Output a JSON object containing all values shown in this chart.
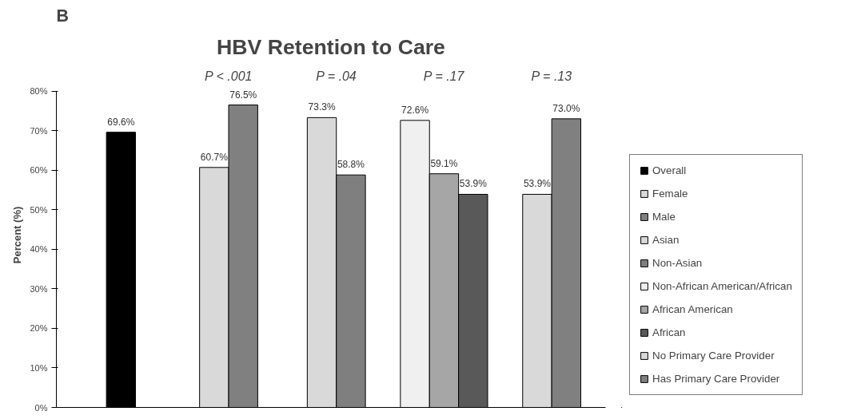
{
  "chart_data": {
    "type": "bar",
    "title": "HBV Retention to Care",
    "ylabel": "Percent (%)",
    "categories": [
      null,
      null,
      null,
      null,
      null
    ],
    "series": [
      {
        "name": "Overall",
        "color": "#000000",
        "values": [
          69.6,
          null,
          null,
          null,
          null
        ],
        "value_labels": [
          "69.6%",
          null,
          null,
          null,
          null
        ]
      },
      {
        "name": "Female",
        "color": "#d9d9d9",
        "values": [
          null,
          60.7,
          null,
          null,
          null
        ],
        "value_labels": [
          null,
          "60.7%",
          null,
          null,
          null
        ]
      },
      {
        "name": "Male",
        "color": "#808080",
        "values": [
          null,
          76.5,
          null,
          null,
          null
        ],
        "value_labels": [
          null,
          "76.5%",
          null,
          null,
          null
        ]
      },
      {
        "name": "Asian",
        "color": "#d9d9d9",
        "values": [
          null,
          null,
          73.3,
          null,
          null
        ],
        "value_labels": [
          null,
          null,
          "73.3%",
          null,
          null
        ]
      },
      {
        "name": "Non-Asian",
        "color": "#7f7f7f",
        "values": [
          null,
          null,
          58.8,
          null,
          null
        ],
        "value_labels": [
          null,
          null,
          "58.8%",
          null,
          null
        ]
      },
      {
        "name": "Non-African American/African",
        "color": "#f0f0f0",
        "values": [
          null,
          null,
          null,
          72.6,
          null
        ],
        "value_labels": [
          null,
          null,
          null,
          "72.6%",
          null
        ]
      },
      {
        "name": "African American",
        "color": "#a6a6a6",
        "values": [
          null,
          null,
          null,
          59.1,
          null
        ],
        "value_labels": [
          null,
          null,
          null,
          "59.1%",
          null
        ]
      },
      {
        "name": "African",
        "color": "#595959",
        "values": [
          null,
          null,
          null,
          53.9,
          null
        ],
        "value_labels": [
          null,
          null,
          null,
          "53.9%",
          null
        ]
      },
      {
        "name": "No Primary Care Provider",
        "color": "#d9d9d9",
        "values": [
          null,
          null,
          null,
          null,
          53.9
        ],
        "value_labels": [
          null,
          null,
          null,
          null,
          "53.9%"
        ]
      },
      {
        "name": "Has Primary Care Provider",
        "color": "#808080",
        "values": [
          null,
          null,
          null,
          null,
          73.0
        ],
        "value_labels": [
          null,
          null,
          null,
          null,
          "73.0%"
        ]
      }
    ],
    "ylim": [
      0,
      80
    ],
    "yticks": [
      {
        "value": 0,
        "label": "0%"
      },
      {
        "value": 10,
        "label": "10%"
      },
      {
        "value": 20,
        "label": "20%"
      },
      {
        "value": 30,
        "label": "30%"
      },
      {
        "value": 40,
        "label": "40%"
      },
      {
        "value": 50,
        "label": "50%"
      },
      {
        "value": 60,
        "label": "60%"
      },
      {
        "value": 70,
        "label": "70%"
      },
      {
        "value": 80,
        "label": "80%"
      }
    ],
    "annotations": [
      "B",
      "P < .001",
      "P = .04",
      "P = .17",
      "P = .13"
    ],
    "grid": false,
    "legend": "right"
  }
}
